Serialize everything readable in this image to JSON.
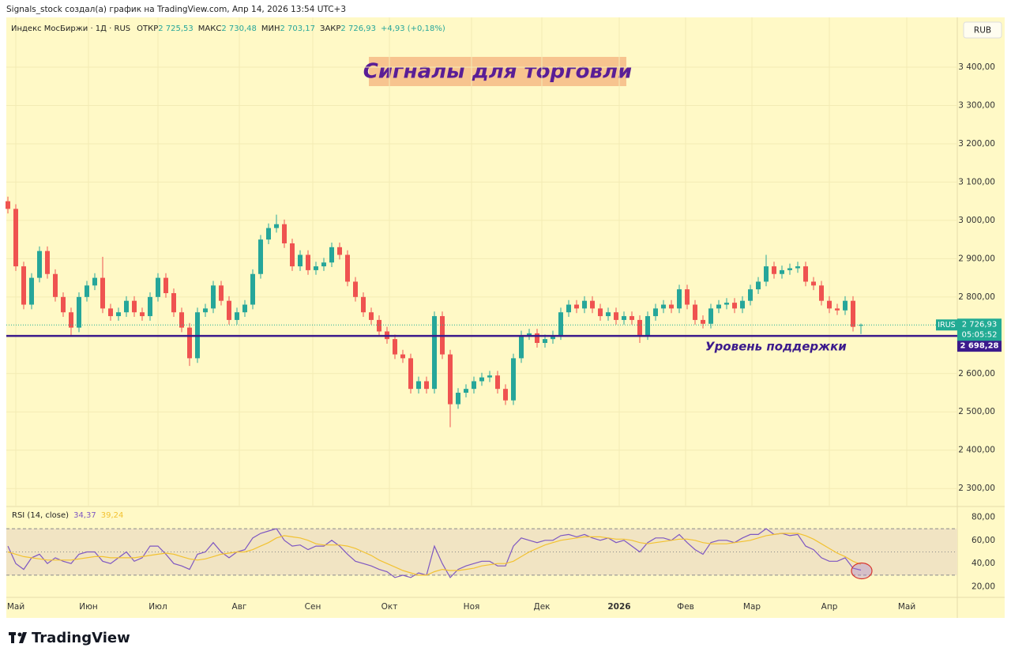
{
  "header": {
    "text": "Signals_stock создал(а) график на TradingView.com, Апр 14, 2026 13:54 UTC+3"
  },
  "footer": {
    "brand": "TradingView"
  },
  "chart_data": [
    {
      "type": "candlestick",
      "title": "Сигналы для торговли",
      "currency": "RUB",
      "legend": {
        "symbol": "Индекс МосБиржи · 1Д · RUS",
        "items": [
          {
            "label": "ОТКР",
            "value": "2 725,53"
          },
          {
            "label": "МАКС",
            "value": "2 730,48"
          },
          {
            "label": "МИН",
            "value": "2 703,17"
          },
          {
            "label": "ЗАКР",
            "value": "2 726,93"
          }
        ],
        "change": "+4,93 (+0,18%)"
      },
      "up_color": "#26a69a",
      "down_color": "#ef5350",
      "grid": true,
      "x": [
        0,
        1,
        2,
        3,
        4,
        5,
        6,
        7,
        8,
        9,
        10,
        11,
        12,
        13,
        14,
        15,
        16,
        17,
        18,
        19,
        20,
        21,
        22,
        23,
        24,
        25,
        26,
        27,
        28,
        29,
        30,
        31,
        32,
        33,
        34,
        35,
        36,
        37,
        38,
        39,
        40,
        41,
        42,
        43,
        44,
        45,
        46,
        47,
        48,
        49,
        50,
        51,
        52,
        53,
        54,
        55,
        56,
        57,
        58,
        59,
        60,
        61,
        62,
        63,
        64,
        65,
        66,
        67,
        68,
        69,
        70,
        71,
        72,
        73,
        74,
        75,
        76,
        77,
        78,
        79,
        80,
        81,
        82,
        83,
        84,
        85,
        86,
        87,
        88,
        89,
        90,
        91,
        92,
        93,
        94,
        95,
        96,
        97,
        98,
        99,
        100,
        101,
        102,
        103,
        104,
        105,
        106,
        107,
        108
      ],
      "open": [
        3050,
        3030,
        2880,
        2780,
        2850,
        2920,
        2860,
        2800,
        2760,
        2720,
        2800,
        2830,
        2850,
        2770,
        2750,
        2760,
        2790,
        2760,
        2750,
        2800,
        2850,
        2810,
        2760,
        2720,
        2640,
        2760,
        2770,
        2830,
        2790,
        2740,
        2760,
        2780,
        2860,
        2950,
        2980,
        2990,
        2940,
        2880,
        2910,
        2870,
        2880,
        2890,
        2930,
        2910,
        2840,
        2800,
        2760,
        2740,
        2710,
        2690,
        2650,
        2640,
        2560,
        2580,
        2560,
        2750,
        2650,
        2520,
        2550,
        2560,
        2580,
        2590,
        2595,
        2560,
        2530,
        2640,
        2700,
        2705,
        2680,
        2690,
        2700,
        2760,
        2780,
        2770,
        2790,
        2770,
        2750,
        2760,
        2740,
        2750,
        2740,
        2700,
        2750,
        2770,
        2780,
        2770,
        2820,
        2780,
        2740,
        2730,
        2770,
        2780,
        2785,
        2770,
        2790,
        2820,
        2840,
        2880,
        2860,
        2870,
        2875,
        2880,
        2840,
        2830,
        2790,
        2770,
        2765,
        2790,
        2725.53
      ],
      "high": [
        3062,
        3042,
        2892,
        2862,
        2932,
        2932,
        2872,
        2812,
        2772,
        2812,
        2842,
        2862,
        2905,
        2782,
        2772,
        2802,
        2802,
        2772,
        2812,
        2862,
        2862,
        2822,
        2772,
        2732,
        2772,
        2782,
        2842,
        2842,
        2802,
        2772,
        2792,
        2872,
        2962,
        2992,
        3015,
        3002,
        2952,
        2922,
        2922,
        2892,
        2902,
        2942,
        2942,
        2922,
        2852,
        2812,
        2772,
        2752,
        2722,
        2702,
        2662,
        2652,
        2592,
        2592,
        2762,
        2762,
        2662,
        2562,
        2572,
        2592,
        2602,
        2607,
        2607,
        2572,
        2652,
        2712,
        2717,
        2717,
        2702,
        2712,
        2772,
        2792,
        2792,
        2802,
        2802,
        2782,
        2772,
        2772,
        2762,
        2762,
        2752,
        2762,
        2782,
        2792,
        2792,
        2832,
        2832,
        2792,
        2752,
        2782,
        2792,
        2797,
        2797,
        2802,
        2832,
        2852,
        2910,
        2892,
        2882,
        2887,
        2892,
        2892,
        2852,
        2842,
        2802,
        2782,
        2802,
        2802,
        2730.48
      ],
      "low": [
        3018,
        2868,
        2768,
        2768,
        2838,
        2848,
        2788,
        2748,
        2700,
        2708,
        2788,
        2818,
        2758,
        2738,
        2738,
        2748,
        2748,
        2738,
        2738,
        2788,
        2798,
        2748,
        2708,
        2620,
        2628,
        2748,
        2758,
        2778,
        2728,
        2728,
        2748,
        2768,
        2848,
        2938,
        2968,
        2928,
        2868,
        2868,
        2858,
        2858,
        2868,
        2878,
        2898,
        2828,
        2788,
        2748,
        2728,
        2698,
        2678,
        2638,
        2628,
        2548,
        2548,
        2548,
        2548,
        2638,
        2460,
        2508,
        2538,
        2548,
        2568,
        2578,
        2548,
        2518,
        2518,
        2628,
        2688,
        2668,
        2668,
        2678,
        2688,
        2748,
        2758,
        2758,
        2758,
        2738,
        2738,
        2728,
        2728,
        2728,
        2680,
        2688,
        2738,
        2758,
        2758,
        2758,
        2768,
        2728,
        2718,
        2718,
        2758,
        2768,
        2758,
        2758,
        2778,
        2808,
        2828,
        2848,
        2848,
        2858,
        2863,
        2828,
        2818,
        2778,
        2758,
        2753,
        2753,
        2710,
        2703.17
      ],
      "close": [
        3030,
        2880,
        2780,
        2850,
        2920,
        2860,
        2800,
        2760,
        2720,
        2800,
        2830,
        2850,
        2770,
        2750,
        2760,
        2790,
        2760,
        2750,
        2800,
        2850,
        2810,
        2760,
        2720,
        2640,
        2760,
        2770,
        2830,
        2790,
        2740,
        2760,
        2780,
        2860,
        2950,
        2980,
        2990,
        2940,
        2880,
        2910,
        2870,
        2880,
        2890,
        2930,
        2910,
        2840,
        2800,
        2760,
        2740,
        2710,
        2690,
        2650,
        2640,
        2560,
        2580,
        2560,
        2750,
        2650,
        2520,
        2550,
        2560,
        2580,
        2590,
        2595,
        2560,
        2530,
        2640,
        2700,
        2705,
        2680,
        2690,
        2700,
        2760,
        2780,
        2770,
        2790,
        2770,
        2750,
        2760,
        2740,
        2750,
        2740,
        2700,
        2750,
        2770,
        2780,
        2770,
        2820,
        2780,
        2740,
        2730,
        2770,
        2780,
        2785,
        2770,
        2790,
        2820,
        2840,
        2880,
        2860,
        2870,
        2875,
        2880,
        2840,
        2830,
        2790,
        2770,
        2765,
        2790,
        2722,
        2726.93
      ],
      "xlim": [
        -0.2,
        120.2
      ],
      "ylim": [
        2255,
        3530
      ],
      "yticks": [
        {
          "value": 2300,
          "label": "2 300,00"
        },
        {
          "value": 2400,
          "label": "2 400,00"
        },
        {
          "value": 2500,
          "label": "2 500,00"
        },
        {
          "value": 2600,
          "label": "2 600,00"
        },
        {
          "value": 2700,
          "label": "2 700,00"
        },
        {
          "value": 2800,
          "label": "2 800,00"
        },
        {
          "value": 2900,
          "label": "2 900,00"
        },
        {
          "value": 3000,
          "label": "3 000,00"
        },
        {
          "value": 3100,
          "label": "3 100,00"
        },
        {
          "value": 3200,
          "label": "3 200,00"
        },
        {
          "value": 3300,
          "label": "3 300,00"
        },
        {
          "value": 3400,
          "label": "3 400,00"
        }
      ],
      "price_label": {
        "value": 2726.93,
        "label": "2 726,93",
        "countdown": "05:05:52",
        "symbol": "IRUS",
        "color": "#22ab94"
      },
      "support": {
        "value": 2698.28,
        "label": "2 698,28",
        "text": "Уровень поддержки",
        "color": "#3b1a8c"
      }
    },
    {
      "type": "line",
      "title": "RSI (14, close)",
      "grid": false,
      "x": [
        0,
        1,
        2,
        3,
        4,
        5,
        6,
        7,
        8,
        9,
        10,
        11,
        12,
        13,
        14,
        15,
        16,
        17,
        18,
        19,
        20,
        21,
        22,
        23,
        24,
        25,
        26,
        27,
        28,
        29,
        30,
        31,
        32,
        33,
        34,
        35,
        36,
        37,
        38,
        39,
        40,
        41,
        42,
        43,
        44,
        45,
        46,
        47,
        48,
        49,
        50,
        51,
        52,
        53,
        54,
        55,
        56,
        57,
        58,
        59,
        60,
        61,
        62,
        63,
        64,
        65,
        66,
        67,
        68,
        69,
        70,
        71,
        72,
        73,
        74,
        75,
        76,
        77,
        78,
        79,
        80,
        81,
        82,
        83,
        84,
        85,
        86,
        87,
        88,
        89,
        90,
        91,
        92,
        93,
        94,
        95,
        96,
        97,
        98,
        99,
        100,
        101,
        102,
        103,
        104,
        105,
        106,
        107,
        108
      ],
      "series": [
        {
          "color": "#7e57c2",
          "legend_value": "34,37",
          "values": [
            55,
            40,
            35,
            45,
            48,
            40,
            45,
            42,
            40,
            48,
            50,
            50,
            42,
            40,
            45,
            50,
            42,
            45,
            55,
            55,
            48,
            40,
            38,
            35,
            48,
            50,
            58,
            50,
            45,
            50,
            52,
            62,
            66,
            68,
            70,
            60,
            55,
            56,
            52,
            55,
            55,
            60,
            55,
            48,
            42,
            40,
            38,
            35,
            33,
            28,
            30,
            28,
            32,
            30,
            55,
            40,
            28,
            35,
            38,
            40,
            42,
            42,
            38,
            38,
            55,
            62,
            60,
            58,
            60,
            60,
            64,
            65,
            63,
            65,
            62,
            60,
            62,
            58,
            60,
            55,
            50,
            58,
            62,
            62,
            60,
            65,
            58,
            52,
            48,
            58,
            60,
            60,
            58,
            62,
            65,
            65,
            70,
            65,
            66,
            64,
            65,
            55,
            52,
            45,
            42,
            42,
            45,
            36,
            34.37
          ]
        },
        {
          "color": "#f2c231",
          "legend_value": "39,24",
          "values": [
            50,
            48,
            46,
            45,
            44,
            43,
            43,
            43,
            43,
            44,
            45,
            46,
            46,
            45,
            45,
            45,
            45,
            46,
            47,
            48,
            49,
            48,
            46,
            44,
            43,
            44,
            46,
            48,
            49,
            50,
            50,
            52,
            55,
            58,
            62,
            64,
            63,
            62,
            60,
            57,
            56,
            56,
            56,
            55,
            53,
            50,
            47,
            43,
            40,
            37,
            34,
            32,
            30,
            30,
            33,
            35,
            34,
            34,
            35,
            36,
            38,
            39,
            40,
            40,
            42,
            46,
            50,
            53,
            56,
            58,
            60,
            61,
            62,
            63,
            63,
            63,
            62,
            61,
            61,
            60,
            58,
            57,
            58,
            59,
            60,
            61,
            61,
            60,
            58,
            57,
            57,
            57,
            58,
            59,
            60,
            62,
            64,
            65,
            66,
            66,
            66,
            64,
            61,
            57,
            53,
            49,
            46,
            42,
            39.24
          ]
        }
      ],
      "levels": [
        70,
        50,
        30
      ],
      "xlim": [
        -0.2,
        120.2
      ],
      "ylim": [
        11.6,
        88.4
      ],
      "yticks": [
        {
          "value": 20,
          "label": "20,00"
        },
        {
          "value": 40,
          "label": "40,00"
        },
        {
          "value": 60,
          "label": "60,00"
        },
        {
          "value": 80,
          "label": "80,00"
        }
      ],
      "xticks": [
        {
          "value": 1,
          "label": "Май"
        },
        {
          "value": 10.2,
          "label": "Июн"
        },
        {
          "value": 19,
          "label": "Июл"
        },
        {
          "value": 29.3,
          "label": "Авг"
        },
        {
          "value": 38.6,
          "label": "Сен"
        },
        {
          "value": 48.3,
          "label": "Окт"
        },
        {
          "value": 58.7,
          "label": "Ноя"
        },
        {
          "value": 67.6,
          "label": "Дек"
        },
        {
          "value": 77.4,
          "label": "2026"
        },
        {
          "value": 85.8,
          "label": "Фев"
        },
        {
          "value": 94.2,
          "label": "Мар"
        },
        {
          "value": 104,
          "label": "Апр"
        },
        {
          "value": 113.8,
          "label": "Май"
        }
      ]
    }
  ]
}
